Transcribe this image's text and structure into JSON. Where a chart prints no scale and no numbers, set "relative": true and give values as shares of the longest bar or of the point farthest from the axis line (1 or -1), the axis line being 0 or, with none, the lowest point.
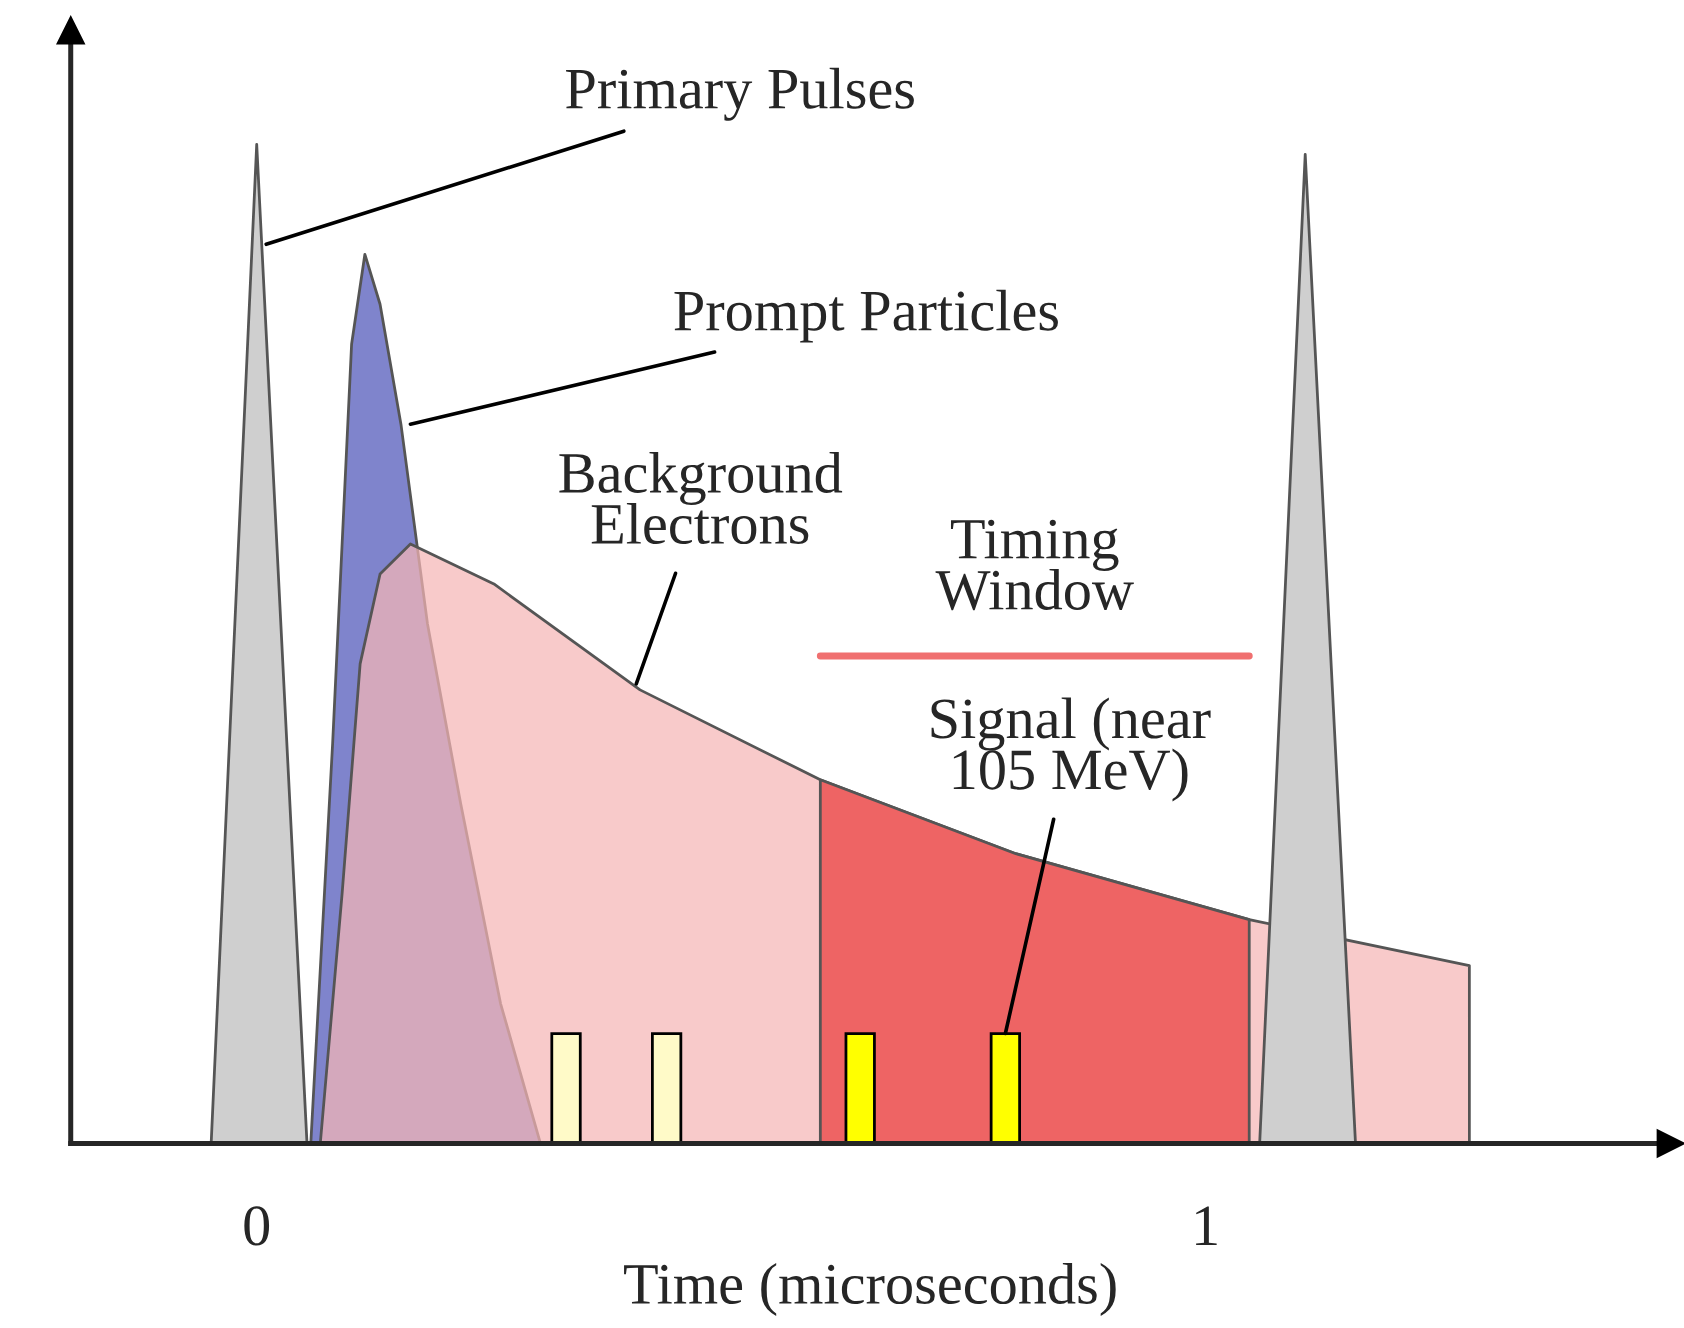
{
  "chart_data": {
    "type": "area",
    "relative": true,
    "xlabel": "Time (microseconds)",
    "xlim": [
      -0.196,
      1.49
    ],
    "xticks": [
      0,
      1
    ],
    "tick_labels": "x",
    "grid": false,
    "legend": false,
    "series": [
      {
        "color": "#7f84cc",
        "x": [
          0.057,
          0.08,
          0.1,
          0.114,
          0.13,
          0.152,
          0.18,
          0.215,
          0.257,
          0.299
        ],
        "values": [
          0,
          0.4,
          0.8,
          0.89,
          0.84,
          0.72,
          0.52,
          0.34,
          0.14,
          0
        ]
      },
      {
        "color": "#f5b5b5",
        "x": [
          0.067,
          0.09,
          0.109,
          0.13,
          0.162,
          0.25,
          0.404,
          0.594,
          0.8,
          1.046,
          1.278,
          1.278
        ],
        "values": [
          0,
          0.25,
          0.48,
          0.57,
          0.6,
          0.56,
          0.454,
          0.364,
          0.29,
          0.224,
          0.178,
          0
        ]
      },
      {
        "color": "#ee6464",
        "x": [
          0.594,
          0.594,
          0.8,
          1.046,
          1.046
        ],
        "values": [
          0,
          0.364,
          0.29,
          0.224,
          0
        ]
      },
      {
        "type": "bar",
        "color": "#fffac8",
        "x": [
          0.326,
          0.432
        ],
        "values": [
          0.11,
          0.11
        ]
      },
      {
        "type": "bar",
        "color": "#ffff00",
        "x": [
          0.636,
          0.789
        ],
        "values": [
          0.11,
          0.11
        ]
      },
      {
        "color": "#cfcfcf",
        "x": [
          -0.048,
          0,
          0.053
        ],
        "values": [
          0,
          1,
          0
        ]
      },
      {
        "color": "#cfcfcf",
        "x": [
          1.057,
          1.105,
          1.158
        ],
        "values": [
          0,
          0.99,
          0
        ]
      },
      {
        "type": "line",
        "color": "#f07070",
        "x": [
          0.594,
          1.046
        ],
        "values": [
          0.488,
          0.488
        ]
      }
    ],
    "annotations": [
      {
        "text": "Primary Pulses",
        "x": 0.01,
        "y": 0.9
      },
      {
        "text": "Prompt Particles",
        "x": 0.162,
        "y": 0.72
      },
      {
        "text": "Background\nElectrons",
        "x": 0.4,
        "y": 0.46
      },
      {
        "text": "Timing\nWindow",
        "x": 0.82,
        "y": 0.488
      },
      {
        "text": "Signal (near\n105 MeV)",
        "x": 0.789,
        "y": 0.11
      }
    ]
  }
}
